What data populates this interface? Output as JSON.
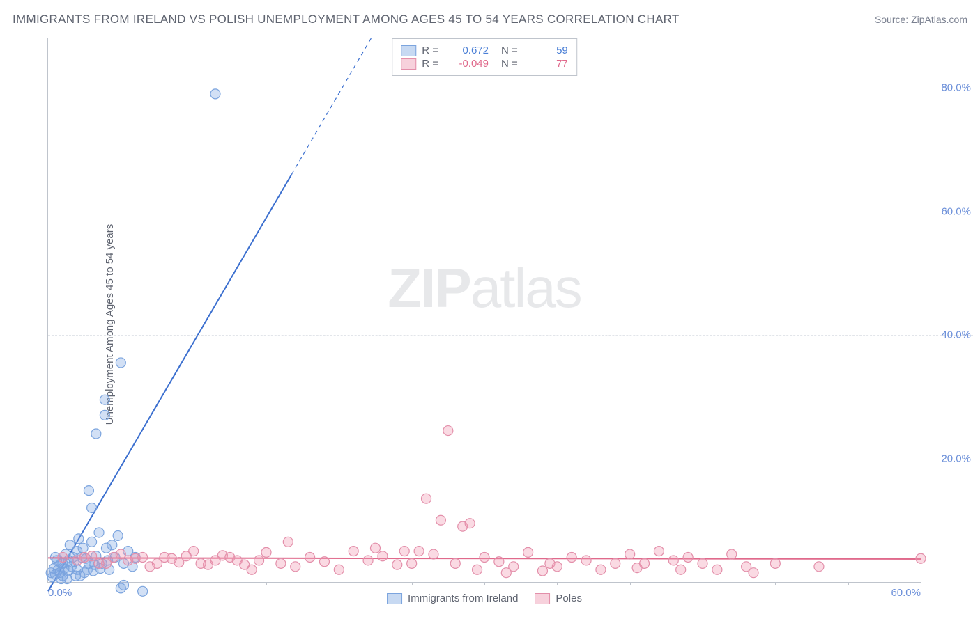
{
  "title": "IMMIGRANTS FROM IRELAND VS POLISH UNEMPLOYMENT AMONG AGES 45 TO 54 YEARS CORRELATION CHART",
  "source": "Source: ZipAtlas.com",
  "watermark_bold": "ZIP",
  "watermark_light": "atlas",
  "chart": {
    "type": "scatter",
    "ylabel": "Unemployment Among Ages 45 to 54 years",
    "xlim": [
      0,
      60
    ],
    "ylim": [
      0,
      88
    ],
    "xticks": [
      0,
      60
    ],
    "xtick_labels": [
      "0.0%",
      "60.0%"
    ],
    "xtick_minor": [
      5,
      10,
      15,
      20,
      25,
      30,
      35,
      40,
      45,
      50,
      55
    ],
    "yticks": [
      20,
      40,
      60,
      80
    ],
    "ytick_labels": [
      "20.0%",
      "40.0%",
      "60.0%",
      "80.0%"
    ],
    "grid_color": "#e2e5ea",
    "axis_color": "#bfc4cc",
    "series": [
      {
        "name": "Immigrants from Ireland",
        "color_fill": "rgba(125,165,225,0.35)",
        "color_stroke": "#7ba4de",
        "swatch_fill": "#c7d9f2",
        "swatch_border": "#7ba4de",
        "r_label": "R =",
        "r_value": "0.672",
        "r_color": "#4a7fd6",
        "n_label": "N =",
        "n_value": "59",
        "trend": {
          "slope": 4.03,
          "intercept": -1.5,
          "color": "#3b6fcf",
          "width": 2
        },
        "points": [
          [
            0.3,
            0.8
          ],
          [
            0.5,
            1.2
          ],
          [
            0.7,
            2.0
          ],
          [
            0.9,
            0.5
          ],
          [
            1.0,
            3.0
          ],
          [
            1.2,
            4.5
          ],
          [
            1.4,
            1.8
          ],
          [
            1.5,
            6.0
          ],
          [
            1.6,
            2.5
          ],
          [
            1.8,
            3.3
          ],
          [
            2.0,
            5.0
          ],
          [
            2.0,
            2.0
          ],
          [
            2.1,
            7.0
          ],
          [
            2.3,
            4.0
          ],
          [
            2.5,
            1.5
          ],
          [
            2.6,
            3.8
          ],
          [
            2.8,
            14.8
          ],
          [
            3.0,
            12.0
          ],
          [
            3.0,
            6.5
          ],
          [
            3.2,
            2.8
          ],
          [
            3.3,
            24.0
          ],
          [
            3.3,
            4.2
          ],
          [
            3.5,
            8.0
          ],
          [
            3.7,
            3.0
          ],
          [
            3.9,
            27.0
          ],
          [
            4.0,
            5.5
          ],
          [
            3.9,
            29.5
          ],
          [
            4.2,
            2.0
          ],
          [
            4.4,
            6.0
          ],
          [
            4.6,
            4.0
          ],
          [
            4.8,
            7.5
          ],
          [
            5.0,
            -1.0
          ],
          [
            5.0,
            35.5
          ],
          [
            5.2,
            3.0
          ],
          [
            5.2,
            -0.5
          ],
          [
            5.5,
            5.0
          ],
          [
            5.8,
            2.5
          ],
          [
            6.5,
            -1.5
          ],
          [
            6.0,
            4.0
          ],
          [
            1.0,
            1.0
          ],
          [
            1.3,
            0.5
          ],
          [
            1.7,
            4.0
          ],
          [
            2.2,
            1.0
          ],
          [
            2.4,
            5.5
          ],
          [
            0.4,
            2.2
          ],
          [
            0.6,
            3.5
          ],
          [
            0.8,
            1.5
          ],
          [
            1.1,
            2.2
          ],
          [
            1.9,
            1.0
          ],
          [
            2.7,
            2.0
          ],
          [
            0.2,
            1.5
          ],
          [
            0.5,
            4.0
          ],
          [
            0.9,
            3.0
          ],
          [
            1.4,
            3.5
          ],
          [
            2.8,
            3.0
          ],
          [
            3.1,
            1.8
          ],
          [
            3.6,
            2.2
          ],
          [
            4.1,
            3.5
          ],
          [
            11.5,
            79.0
          ]
        ]
      },
      {
        "name": "Poles",
        "color_fill": "rgba(240,150,175,0.35)",
        "color_stroke": "#e38faa",
        "swatch_fill": "#f7d1dc",
        "swatch_border": "#e38faa",
        "r_label": "R =",
        "r_value": "-0.049",
        "r_color": "#e06a8c",
        "n_label": "N =",
        "n_value": "77",
        "trend": {
          "slope": -0.003,
          "intercept": 3.9,
          "color": "#e06a8c",
          "width": 2
        },
        "points": [
          [
            1.0,
            4.0
          ],
          [
            2.0,
            3.5
          ],
          [
            3.0,
            4.2
          ],
          [
            4.0,
            3.0
          ],
          [
            5.0,
            4.5
          ],
          [
            6.0,
            3.8
          ],
          [
            7.0,
            2.5
          ],
          [
            8.0,
            4.0
          ],
          [
            9.0,
            3.2
          ],
          [
            10.0,
            5.0
          ],
          [
            11.0,
            2.8
          ],
          [
            12.0,
            4.3
          ],
          [
            13.0,
            3.5
          ],
          [
            14.0,
            2.0
          ],
          [
            15.0,
            4.8
          ],
          [
            16.0,
            3.0
          ],
          [
            16.5,
            6.5
          ],
          [
            17.0,
            2.5
          ],
          [
            18.0,
            4.0
          ],
          [
            19.0,
            3.3
          ],
          [
            20.0,
            2.0
          ],
          [
            21.0,
            5.0
          ],
          [
            22.0,
            3.5
          ],
          [
            22.5,
            5.5
          ],
          [
            23.0,
            4.2
          ],
          [
            24.0,
            2.8
          ],
          [
            24.5,
            5.0
          ],
          [
            25.0,
            3.0
          ],
          [
            25.5,
            5.0
          ],
          [
            26.0,
            13.5
          ],
          [
            26.5,
            4.5
          ],
          [
            27.0,
            10.0
          ],
          [
            27.5,
            24.5
          ],
          [
            28.0,
            3.0
          ],
          [
            28.5,
            9.0
          ],
          [
            29.0,
            9.5
          ],
          [
            29.5,
            2.0
          ],
          [
            30.0,
            4.0
          ],
          [
            31.0,
            3.3
          ],
          [
            31.5,
            1.5
          ],
          [
            32.0,
            2.5
          ],
          [
            33.0,
            4.8
          ],
          [
            34.0,
            1.8
          ],
          [
            34.5,
            3.0
          ],
          [
            35.0,
            2.5
          ],
          [
            36.0,
            4.0
          ],
          [
            37.0,
            3.5
          ],
          [
            38.0,
            2.0
          ],
          [
            39.0,
            3.0
          ],
          [
            40.0,
            4.5
          ],
          [
            40.5,
            2.3
          ],
          [
            41.0,
            3.0
          ],
          [
            42.0,
            5.0
          ],
          [
            43.0,
            3.5
          ],
          [
            43.5,
            2.0
          ],
          [
            44.0,
            4.0
          ],
          [
            45.0,
            3.0
          ],
          [
            46.0,
            2.0
          ],
          [
            47.0,
            4.5
          ],
          [
            48.0,
            2.5
          ],
          [
            48.5,
            1.5
          ],
          [
            50.0,
            3.0
          ],
          [
            53.0,
            2.5
          ],
          [
            2.5,
            4.0
          ],
          [
            3.5,
            3.0
          ],
          [
            4.5,
            4.0
          ],
          [
            5.5,
            3.5
          ],
          [
            6.5,
            4.0
          ],
          [
            7.5,
            3.0
          ],
          [
            8.5,
            3.8
          ],
          [
            9.5,
            4.2
          ],
          [
            10.5,
            3.0
          ],
          [
            11.5,
            3.5
          ],
          [
            12.5,
            4.0
          ],
          [
            13.5,
            2.8
          ],
          [
            14.5,
            3.5
          ],
          [
            60.0,
            3.8
          ]
        ]
      }
    ]
  }
}
